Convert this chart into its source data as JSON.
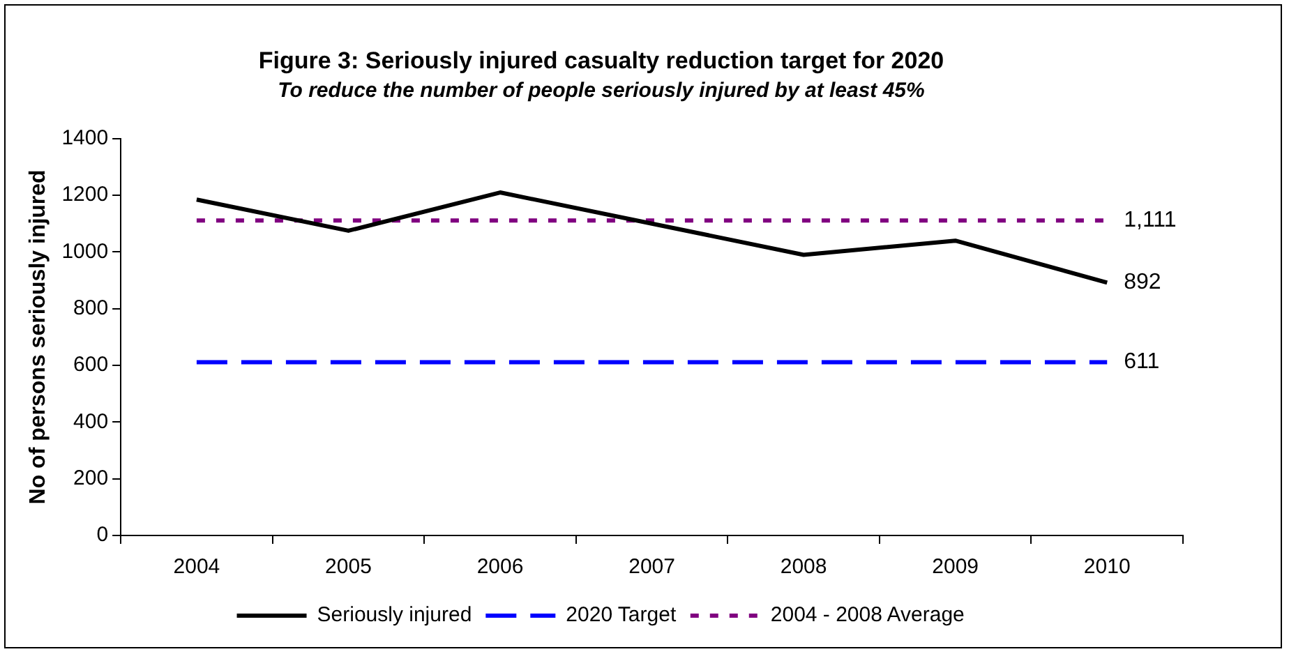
{
  "chart_data": {
    "type": "line",
    "title": "Figure 3: Seriously injured casualty reduction target for 2020",
    "subtitle": "To reduce the number of people seriously injured by at least 45%",
    "ylabel": "No of persons seriously injured",
    "categories": [
      "2004",
      "2005",
      "2006",
      "2007",
      "2008",
      "2009",
      "2010"
    ],
    "series": [
      {
        "name": "Seriously injured",
        "color": "#000000",
        "values": [
          1185,
          1075,
          1210,
          1100,
          990,
          1040,
          892
        ],
        "line_style": "solid",
        "value_labels": [
          null,
          null,
          null,
          null,
          null,
          null,
          "892"
        ]
      },
      {
        "name": "2020 Target",
        "color": "#0000ff",
        "values": [
          611,
          611,
          611,
          611,
          611,
          611,
          611
        ],
        "line_style": "dashed",
        "value_labels": [
          null,
          null,
          null,
          null,
          null,
          null,
          "611"
        ]
      },
      {
        "name": "2004 - 2008 Average",
        "color": "#800080",
        "values": [
          1111,
          1111,
          1111,
          1111,
          1111,
          1111,
          1111
        ],
        "line_style": "dotted",
        "value_labels": [
          null,
          null,
          null,
          null,
          null,
          null,
          "1,111"
        ]
      }
    ],
    "ylim": [
      0,
      1400
    ],
    "yticks": [
      0,
      200,
      400,
      600,
      800,
      1000,
      1200,
      1400
    ],
    "grid": false,
    "legend": "bottom",
    "marker": "none"
  }
}
